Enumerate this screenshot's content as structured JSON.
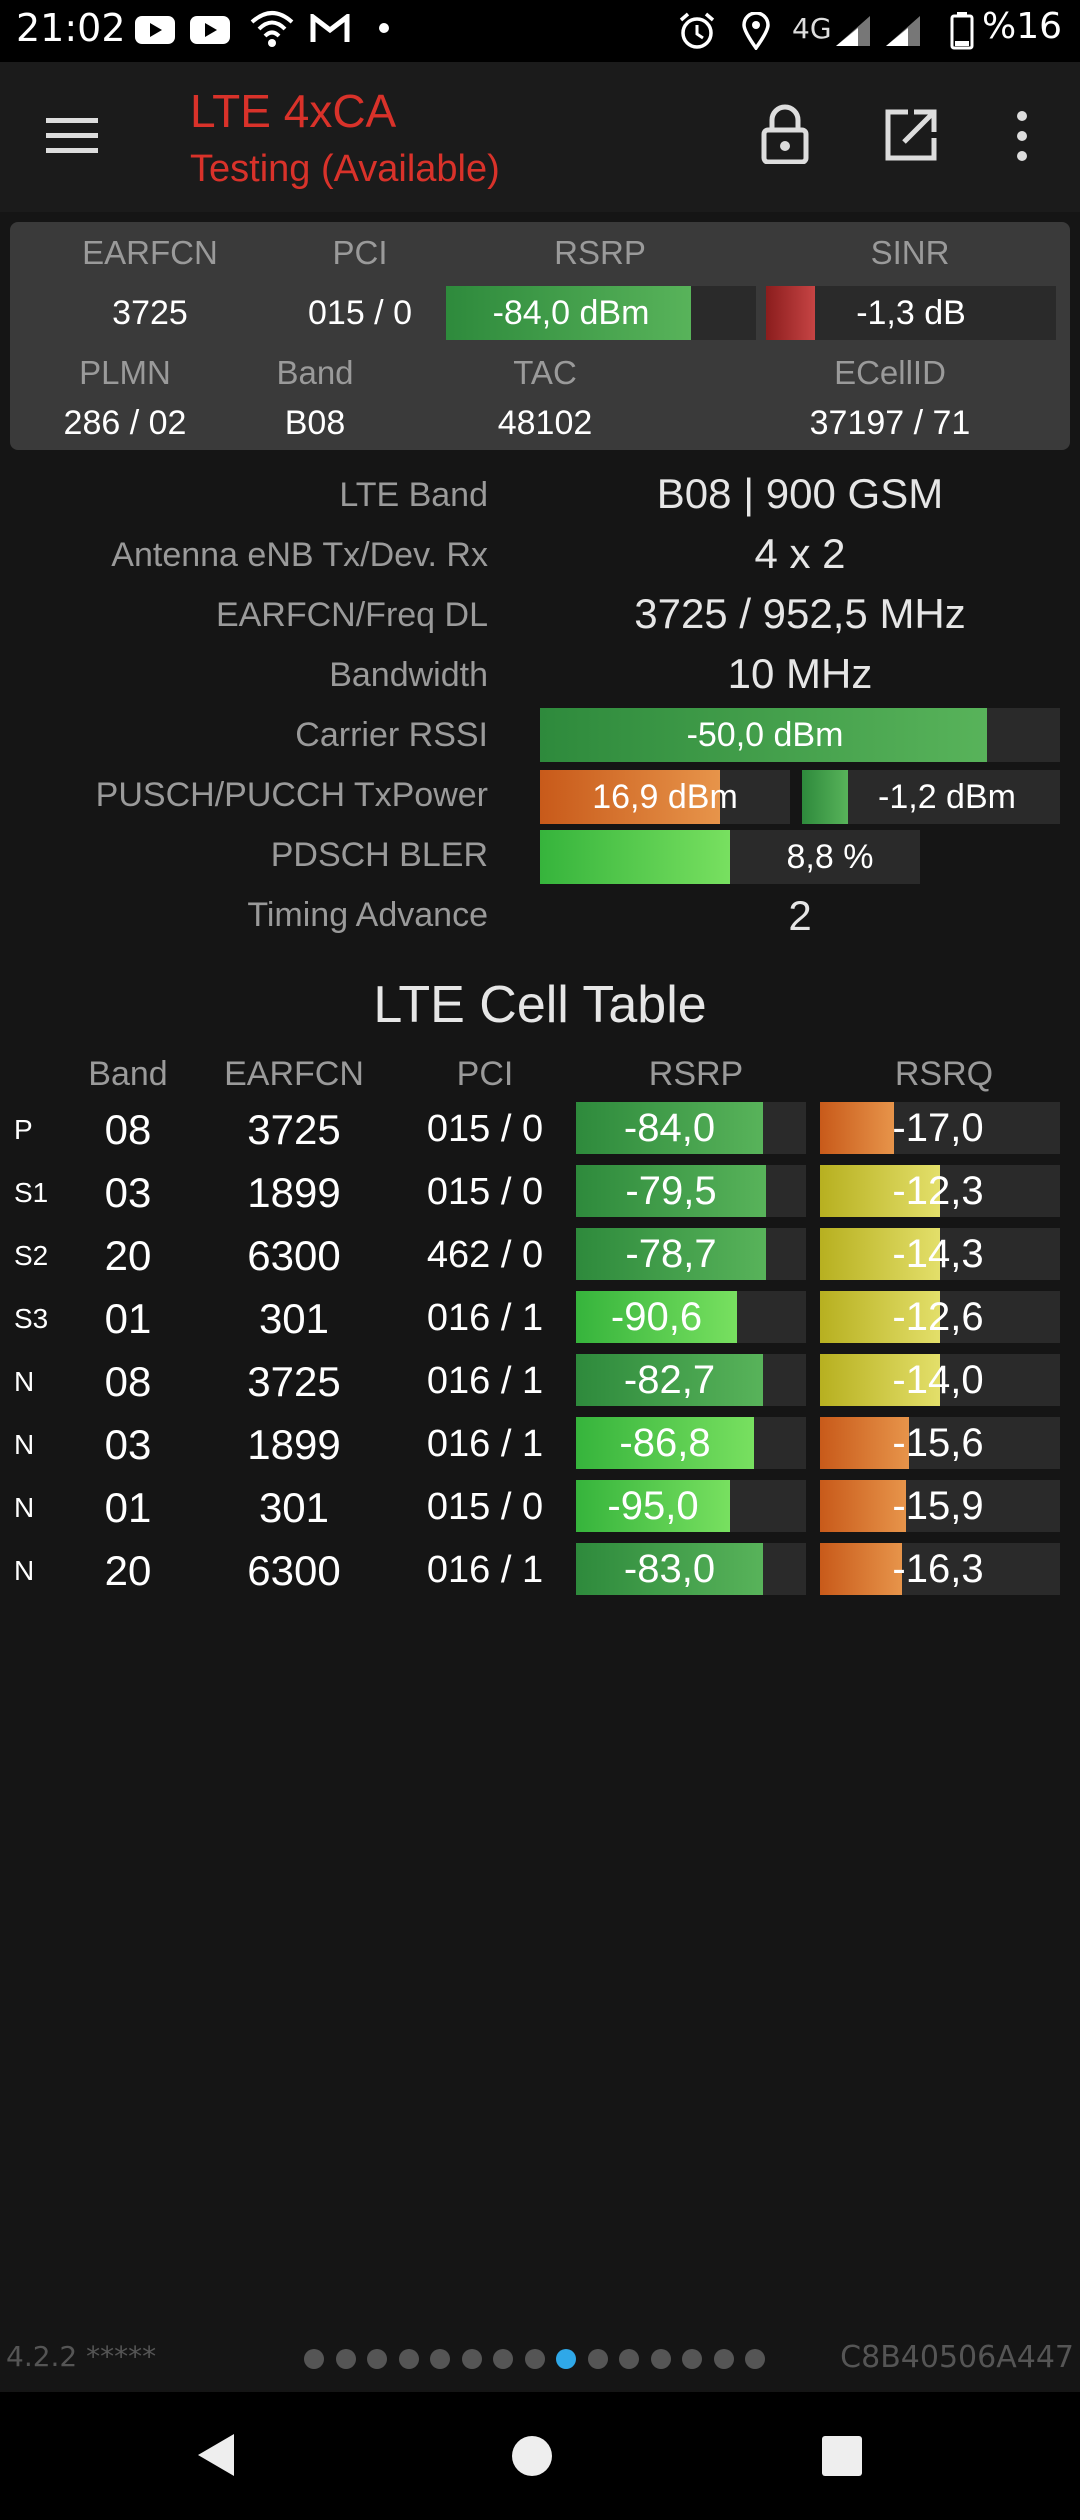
{
  "status_bar": {
    "time": "21:02",
    "network_type": "4G",
    "battery": "%16",
    "icons": [
      "youtube-icon",
      "youtube-icon",
      "wifi-icon",
      "gmail-icon",
      "dot-icon",
      "alarm-icon",
      "location-icon",
      "signal-icon",
      "signal-icon",
      "battery-icon"
    ]
  },
  "app_bar": {
    "title": "LTE 4xCA",
    "subtitle": "Testing (Available)",
    "icons": [
      "menu-icon",
      "lock-icon",
      "open-external-icon",
      "more-vert-icon"
    ]
  },
  "summary": {
    "headers": {
      "earfcn": "EARFCN",
      "pci": "PCI",
      "rsrp": "RSRP",
      "sinr": "SINR",
      "plmn": "PLMN",
      "band": "Band",
      "tac": "TAC",
      "ecellid": "ECellID"
    },
    "earfcn": "3725",
    "pci": "015 / 0",
    "rsrp": "-84,0 dBm",
    "rsrp_level": 0.79,
    "sinr": "-1,3 dB",
    "sinr_level": 0.17,
    "plmn": "286 / 02",
    "band": "B08",
    "tac": "48102",
    "ecellid": "37197 / 71"
  },
  "details": {
    "lte_band_label": "LTE Band",
    "lte_band_value": "B08 | 900 GSM",
    "antenna_label": "Antenna eNB Tx/Dev. Rx",
    "antenna_value": "4 x 2",
    "earfcn_freq_label": "EARFCN/Freq DL",
    "earfcn_freq_value": "3725 / 952,5 MHz",
    "bandwidth_label": "Bandwidth",
    "bandwidth_value": "10 MHz",
    "rssi_label": "Carrier RSSI",
    "rssi_value": "-50,0 dBm",
    "rssi_level": 0.86,
    "txpower_label": "PUSCH/PUCCH TxPower",
    "pusch_value": "16,9 dBm",
    "pusch_level": 0.72,
    "pucch_value": "-1,2 dBm",
    "pucch_level": 0.18,
    "bler_label": "PDSCH BLER",
    "bler_value": "8,8 %",
    "bler_level": 0.5,
    "timing_label": "Timing Advance",
    "timing_value": "2"
  },
  "cell_table": {
    "title": "LTE Cell Table",
    "headers": {
      "band": "Band",
      "earfcn": "EARFCN",
      "pci": "PCI",
      "rsrp": "RSRP",
      "rsrq": "RSRQ"
    },
    "rows": [
      {
        "type": "P",
        "band": "08",
        "earfcn": "3725",
        "pci": "015 / 0",
        "rsrp": "-84,0",
        "rsrp_level": 0.78,
        "rsrq": "-17,0",
        "rsrq_level": 0.31,
        "rsrp_color": "green",
        "rsrq_color": "orange"
      },
      {
        "type": "S1",
        "band": "03",
        "earfcn": "1899",
        "pci": "015 / 0",
        "rsrp": "-79,5",
        "rsrp_level": 0.79,
        "rsrq": "-12,3",
        "rsrq_level": 0.5,
        "rsrp_color": "green",
        "rsrq_color": "yellow"
      },
      {
        "type": "S2",
        "band": "20",
        "earfcn": "6300",
        "pci": "462 / 0",
        "rsrp": "-78,7",
        "rsrp_level": 0.79,
        "rsrq": "-14,3",
        "rsrq_level": 0.5,
        "rsrp_color": "green",
        "rsrq_color": "yellow"
      },
      {
        "type": "S3",
        "band": "01",
        "earfcn": "301",
        "pci": "016 / 1",
        "rsrp": "-90,6",
        "rsrp_level": 0.67,
        "rsrq": "-12,6",
        "rsrq_level": 0.5,
        "rsrp_color": "lime",
        "rsrq_color": "yellow"
      },
      {
        "type": "N",
        "band": "08",
        "earfcn": "3725",
        "pci": "016 / 1",
        "rsrp": "-82,7",
        "rsrp_level": 0.78,
        "rsrq": "-14,0",
        "rsrq_level": 0.5,
        "rsrp_color": "green",
        "rsrq_color": "yellow"
      },
      {
        "type": "N",
        "band": "03",
        "earfcn": "1899",
        "pci": "016 / 1",
        "rsrp": "-86,8",
        "rsrp_level": 0.74,
        "rsrq": "-15,6",
        "rsrq_level": 0.37,
        "rsrp_color": "lime",
        "rsrq_color": "orange"
      },
      {
        "type": "N",
        "band": "01",
        "earfcn": "301",
        "pci": "015 / 0",
        "rsrp": "-95,0",
        "rsrp_level": 0.64,
        "rsrq": "-15,9",
        "rsrq_level": 0.36,
        "rsrp_color": "lime",
        "rsrq_color": "orange"
      },
      {
        "type": "N",
        "band": "20",
        "earfcn": "6300",
        "pci": "016 / 1",
        "rsrp": "-83,0",
        "rsrp_level": 0.78,
        "rsrq": "-16,3",
        "rsrq_level": 0.34,
        "rsrp_color": "green",
        "rsrq_color": "orange"
      }
    ]
  },
  "footer": {
    "version": "4.2.2 *****",
    "device_id": "C8B40506A447",
    "page_count": 15,
    "active_page": 8
  },
  "nav_bar": {
    "icons": [
      "back-icon",
      "home-icon",
      "recents-icon"
    ]
  },
  "colors": {
    "accent_red": "#d9322a",
    "active_dot": "#2fa8e8"
  }
}
